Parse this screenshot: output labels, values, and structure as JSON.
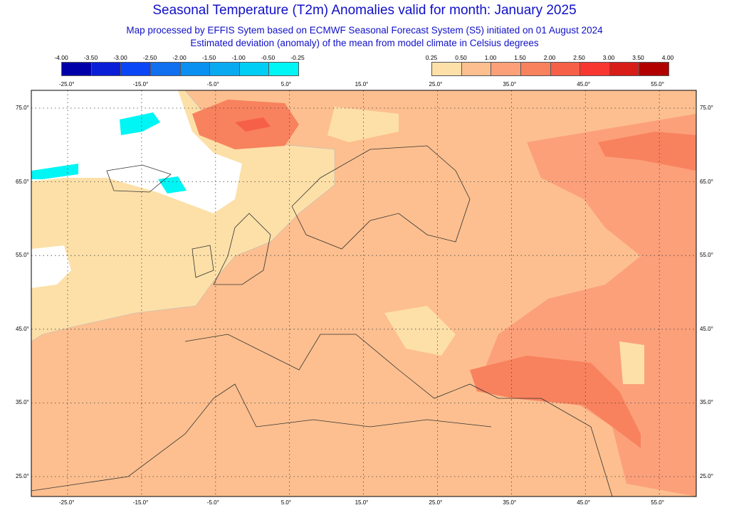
{
  "title": "Seasonal Temperature (T2m) Anomalies valid for month: January 2025",
  "subtitle1": "Map processed by EFFIS Sytem based on ECMWF Seasonal Forecast System (S5) initiated on 01 August 2024",
  "subtitle2": "Estimated deviation (anomaly) of the mean from model climate in Celsius degrees",
  "legend_negative": {
    "labels": [
      "-4.00",
      "-3.50",
      "-3.00",
      "-2.50",
      "-2.00",
      "-1.50",
      "-1.00",
      "-0.50",
      "-0.25"
    ],
    "colors": [
      "#0000a8",
      "#0a1ed8",
      "#0a46f5",
      "#1070f0",
      "#0a90f0",
      "#0aaaf0",
      "#00cef5",
      "#00f5f5"
    ]
  },
  "legend_positive": {
    "labels": [
      "0.25",
      "0.50",
      "1.00",
      "1.50",
      "2.00",
      "2.50",
      "3.00",
      "3.50",
      "4.00"
    ],
    "colors": [
      "#fde0a8",
      "#fdbf8f",
      "#fca07a",
      "#f8825e",
      "#f66048",
      "#f83830",
      "#d81c18",
      "#b00000"
    ]
  },
  "lon_ticks": [
    "-25.0°",
    "-15.0°",
    "-5.0°",
    "5.0°",
    "15.0°",
    "25.0°",
    "35.0°",
    "45.0°",
    "55.0°"
  ],
  "lat_ticks": [
    "75.0°",
    "65.0°",
    "55.0°",
    "45.0°",
    "35.0°",
    "25.0°"
  ]
}
